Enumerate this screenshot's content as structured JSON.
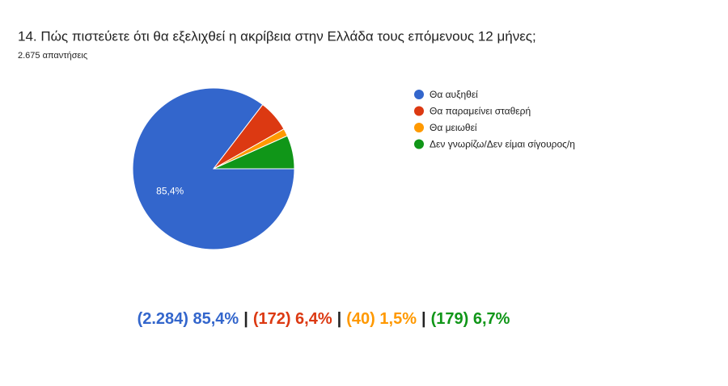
{
  "chart_data": {
    "type": "pie",
    "title": "14. Πώς πιστεύετε ότι θα εξελιχθεί η ακρίβεια στην Ελλάδα τους επόμενους 12 μήνες;",
    "subtitle": "2.675 απαντήσεις",
    "categories": [
      "Θα αυξηθεί",
      "Θα παραμείνει σταθερή",
      "Θα μειωθεί",
      "Δεν γνωρίζω/Δεν είμαι σίγουρος/η"
    ],
    "values": [
      85.4,
      6.4,
      1.5,
      6.7
    ],
    "value_labels": [
      "85,4%",
      null,
      null,
      null
    ],
    "colors": [
      "#3366cc",
      "#dc3912",
      "#ff9900",
      "#109618"
    ],
    "legend": "right",
    "annotations": [
      "(2.284) 85,4%",
      "(172) 6,4%",
      "(40) 1,5%",
      "(179) 6,7%"
    ],
    "separator": "|"
  }
}
